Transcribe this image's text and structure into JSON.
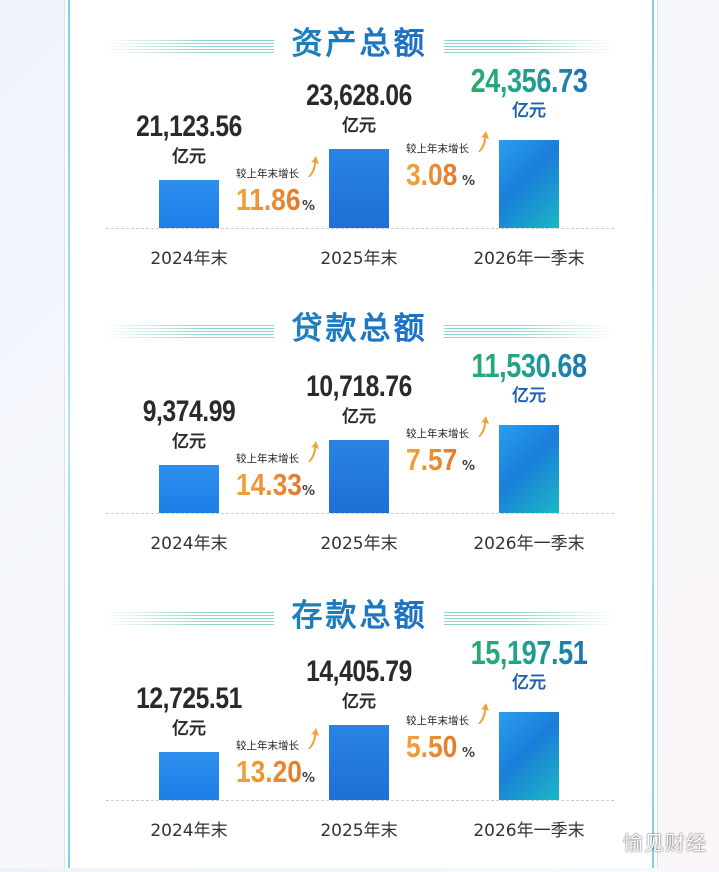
{
  "chart_data": [
    {
      "type": "bar",
      "title": "资产总额",
      "categories": [
        "2024年末",
        "2025年末",
        "2026年一季末"
      ],
      "values": [
        21123.56,
        23628.06,
        24356.73
      ],
      "value_labels": [
        "21,123.56",
        "23,628.06",
        "24,356.73"
      ],
      "unit": "亿元",
      "growth": [
        {
          "label": "较上年末增长",
          "value": "11.86",
          "sign": "%"
        },
        {
          "label": "较上年末增长",
          "value": "3.08",
          "sign": "%"
        }
      ]
    },
    {
      "type": "bar",
      "title": "贷款总额",
      "categories": [
        "2024年末",
        "2025年末",
        "2026年一季末"
      ],
      "values": [
        9374.99,
        10718.76,
        11530.68
      ],
      "value_labels": [
        "9,374.99",
        "10,718.76",
        "11,530.68"
      ],
      "unit": "亿元",
      "growth": [
        {
          "label": "较上年末增长",
          "value": "14.33",
          "sign": "%"
        },
        {
          "label": "较上年末增长",
          "value": "7.57",
          "sign": "%"
        }
      ]
    },
    {
      "type": "bar",
      "title": "存款总额",
      "categories": [
        "2024年末",
        "2025年末",
        "2026年一季末"
      ],
      "values": [
        12725.51,
        14405.79,
        15197.51
      ],
      "value_labels": [
        "12,725.51",
        "14,405.79",
        "15,197.51"
      ],
      "unit": "亿元",
      "growth": [
        {
          "label": "较上年末增长",
          "value": "13.20",
          "sign": "%"
        },
        {
          "label": "较上年末增长",
          "value": "5.50",
          "sign": "%"
        }
      ]
    }
  ],
  "colors": {
    "title_gradient": [
      "#1ba8a0",
      "#1a4fb8"
    ],
    "bar": "#1c7fe8",
    "growth": "#e7782a",
    "highlight_value": "#2cae5c"
  },
  "watermark": "愉见财经"
}
